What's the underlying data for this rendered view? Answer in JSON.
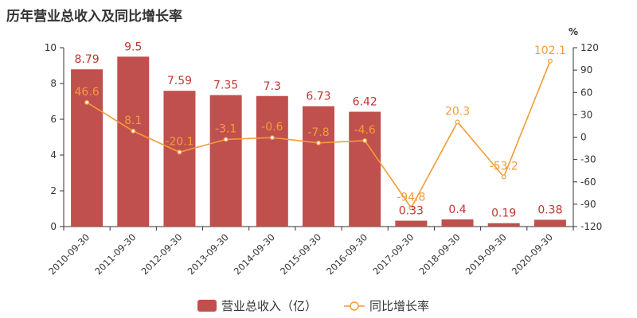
{
  "chart_data": {
    "type": "bar",
    "title": "历年营业总收入及同比增长率",
    "categories": [
      "2010-09-30",
      "2011-09-30",
      "2012-09-30",
      "2013-09-30",
      "2014-09-30",
      "2015-09-30",
      "2016-09-30",
      "2017-09-30",
      "2018-09-30",
      "2019-09-30",
      "2020-09-30"
    ],
    "series": [
      {
        "name": "营业总收入（亿）",
        "type": "bar",
        "axis": "left",
        "color": "#c0504d",
        "values": [
          8.79,
          9.5,
          7.59,
          7.35,
          7.3,
          6.73,
          6.42,
          0.33,
          0.4,
          0.19,
          0.38
        ]
      },
      {
        "name": "同比增长率",
        "type": "line",
        "axis": "right",
        "color": "#f39c39",
        "values": [
          46.6,
          8.1,
          -20.1,
          -3.1,
          -0.6,
          -7.8,
          -4.6,
          -94.8,
          20.3,
          -53.2,
          102.1
        ]
      }
    ],
    "y_left": {
      "min": 0,
      "max": 10,
      "ticks": [
        0,
        2,
        4,
        6,
        8,
        10
      ]
    },
    "y_right": {
      "label": "%",
      "min": -120,
      "max": 120,
      "ticks": [
        -120,
        -90,
        -60,
        -30,
        0,
        30,
        60,
        90,
        120
      ]
    },
    "grid": false,
    "legend_position": "bottom-center"
  }
}
